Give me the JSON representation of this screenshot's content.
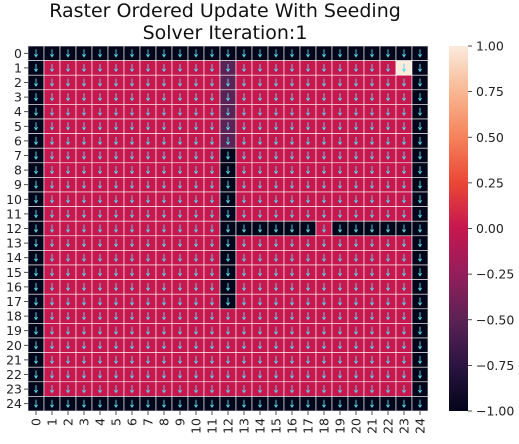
{
  "chart_data": {
    "type": "heatmap",
    "title_lines": [
      "Raster Ordered Update With Seeding",
      "Solver Iteration:1"
    ],
    "x_ticks": [
      "0",
      "1",
      "2",
      "3",
      "4",
      "5",
      "6",
      "7",
      "8",
      "9",
      "10",
      "11",
      "12",
      "13",
      "14",
      "15",
      "16",
      "17",
      "18",
      "19",
      "20",
      "21",
      "22",
      "23",
      "24"
    ],
    "y_ticks": [
      "0",
      "1",
      "2",
      "3",
      "4",
      "5",
      "6",
      "7",
      "8",
      "9",
      "10",
      "11",
      "12",
      "13",
      "14",
      "15",
      "16",
      "17",
      "18",
      "19",
      "20",
      "21",
      "22",
      "23",
      "24"
    ],
    "colorbar": {
      "vmin": -1.0,
      "vmax": 1.0,
      "ticks": [
        "1.00",
        "0.75",
        "0.50",
        "0.25",
        "0.00",
        "−0.25",
        "−0.50",
        "−0.75",
        "−1.00"
      ]
    },
    "colormap": "rocket",
    "grid_lines": true,
    "arrows": "small cyan downward arrows in each cell",
    "cell_values": {
      "default": 0.0,
      "walls": -1.0,
      "wall_cells_description": "border rows 0 and 24, border columns 0 and 24, column 12 rows 7-17, row 12 columns 12-17 and 19-23",
      "goal_cell": {
        "row": 1,
        "col": 23,
        "value": 1.0
      },
      "faded_cells": {
        "col": 12,
        "rows": [
          1,
          2,
          3,
          4,
          5,
          6
        ],
        "value": -0.3
      }
    }
  },
  "colors": {
    "zero": "#c6174f",
    "wall": "#03051a",
    "goal": "#faebdd",
    "faded": "#5c2255",
    "arrow": "#59d8e6",
    "grid": "#ffffff"
  }
}
